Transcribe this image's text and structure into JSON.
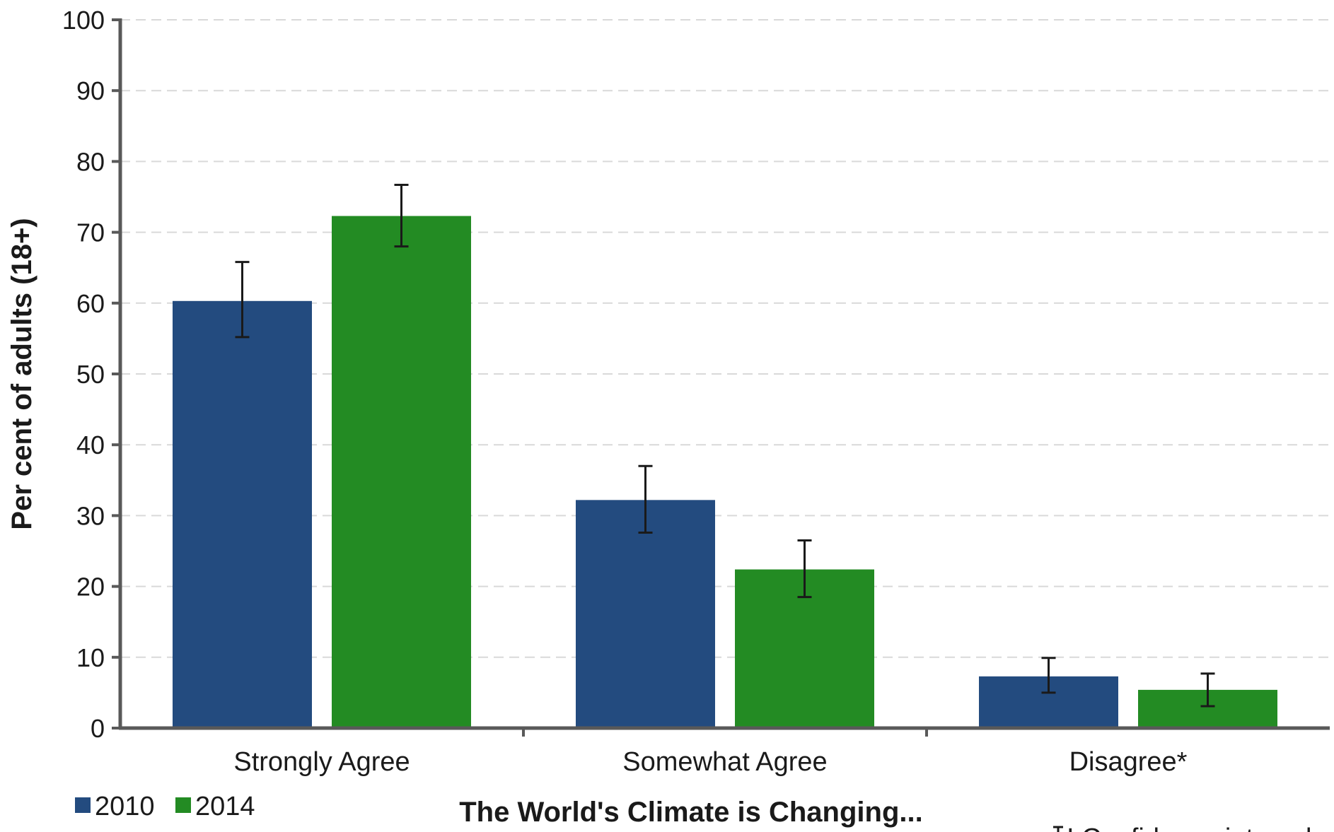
{
  "chart_data": {
    "type": "bar",
    "categories": [
      "Strongly Agree",
      "Somewhat Agree",
      "Disagree*"
    ],
    "series": [
      {
        "name": "2010",
        "color": "#234b7f",
        "values": [
          60.3,
          32.2,
          7.3
        ],
        "error_low": [
          55.2,
          27.6,
          5.0
        ],
        "error_high": [
          65.8,
          37.0,
          9.9
        ]
      },
      {
        "name": "2014",
        "color": "#238b23",
        "values": [
          72.3,
          22.4,
          5.4
        ],
        "error_low": [
          68.0,
          18.5,
          3.1
        ],
        "error_high": [
          76.7,
          26.5,
          7.7
        ]
      }
    ],
    "xlabel": "The World's Climate is Changing...",
    "ylabel": "Per cent of adults (18+)",
    "ylim": [
      0,
      100
    ],
    "yticks": [
      0,
      10,
      20,
      30,
      40,
      50,
      60,
      70,
      80,
      90,
      100
    ],
    "grid": true,
    "legend_position": "bottom-left",
    "error_bars": true,
    "note": "I Confidence interval"
  }
}
